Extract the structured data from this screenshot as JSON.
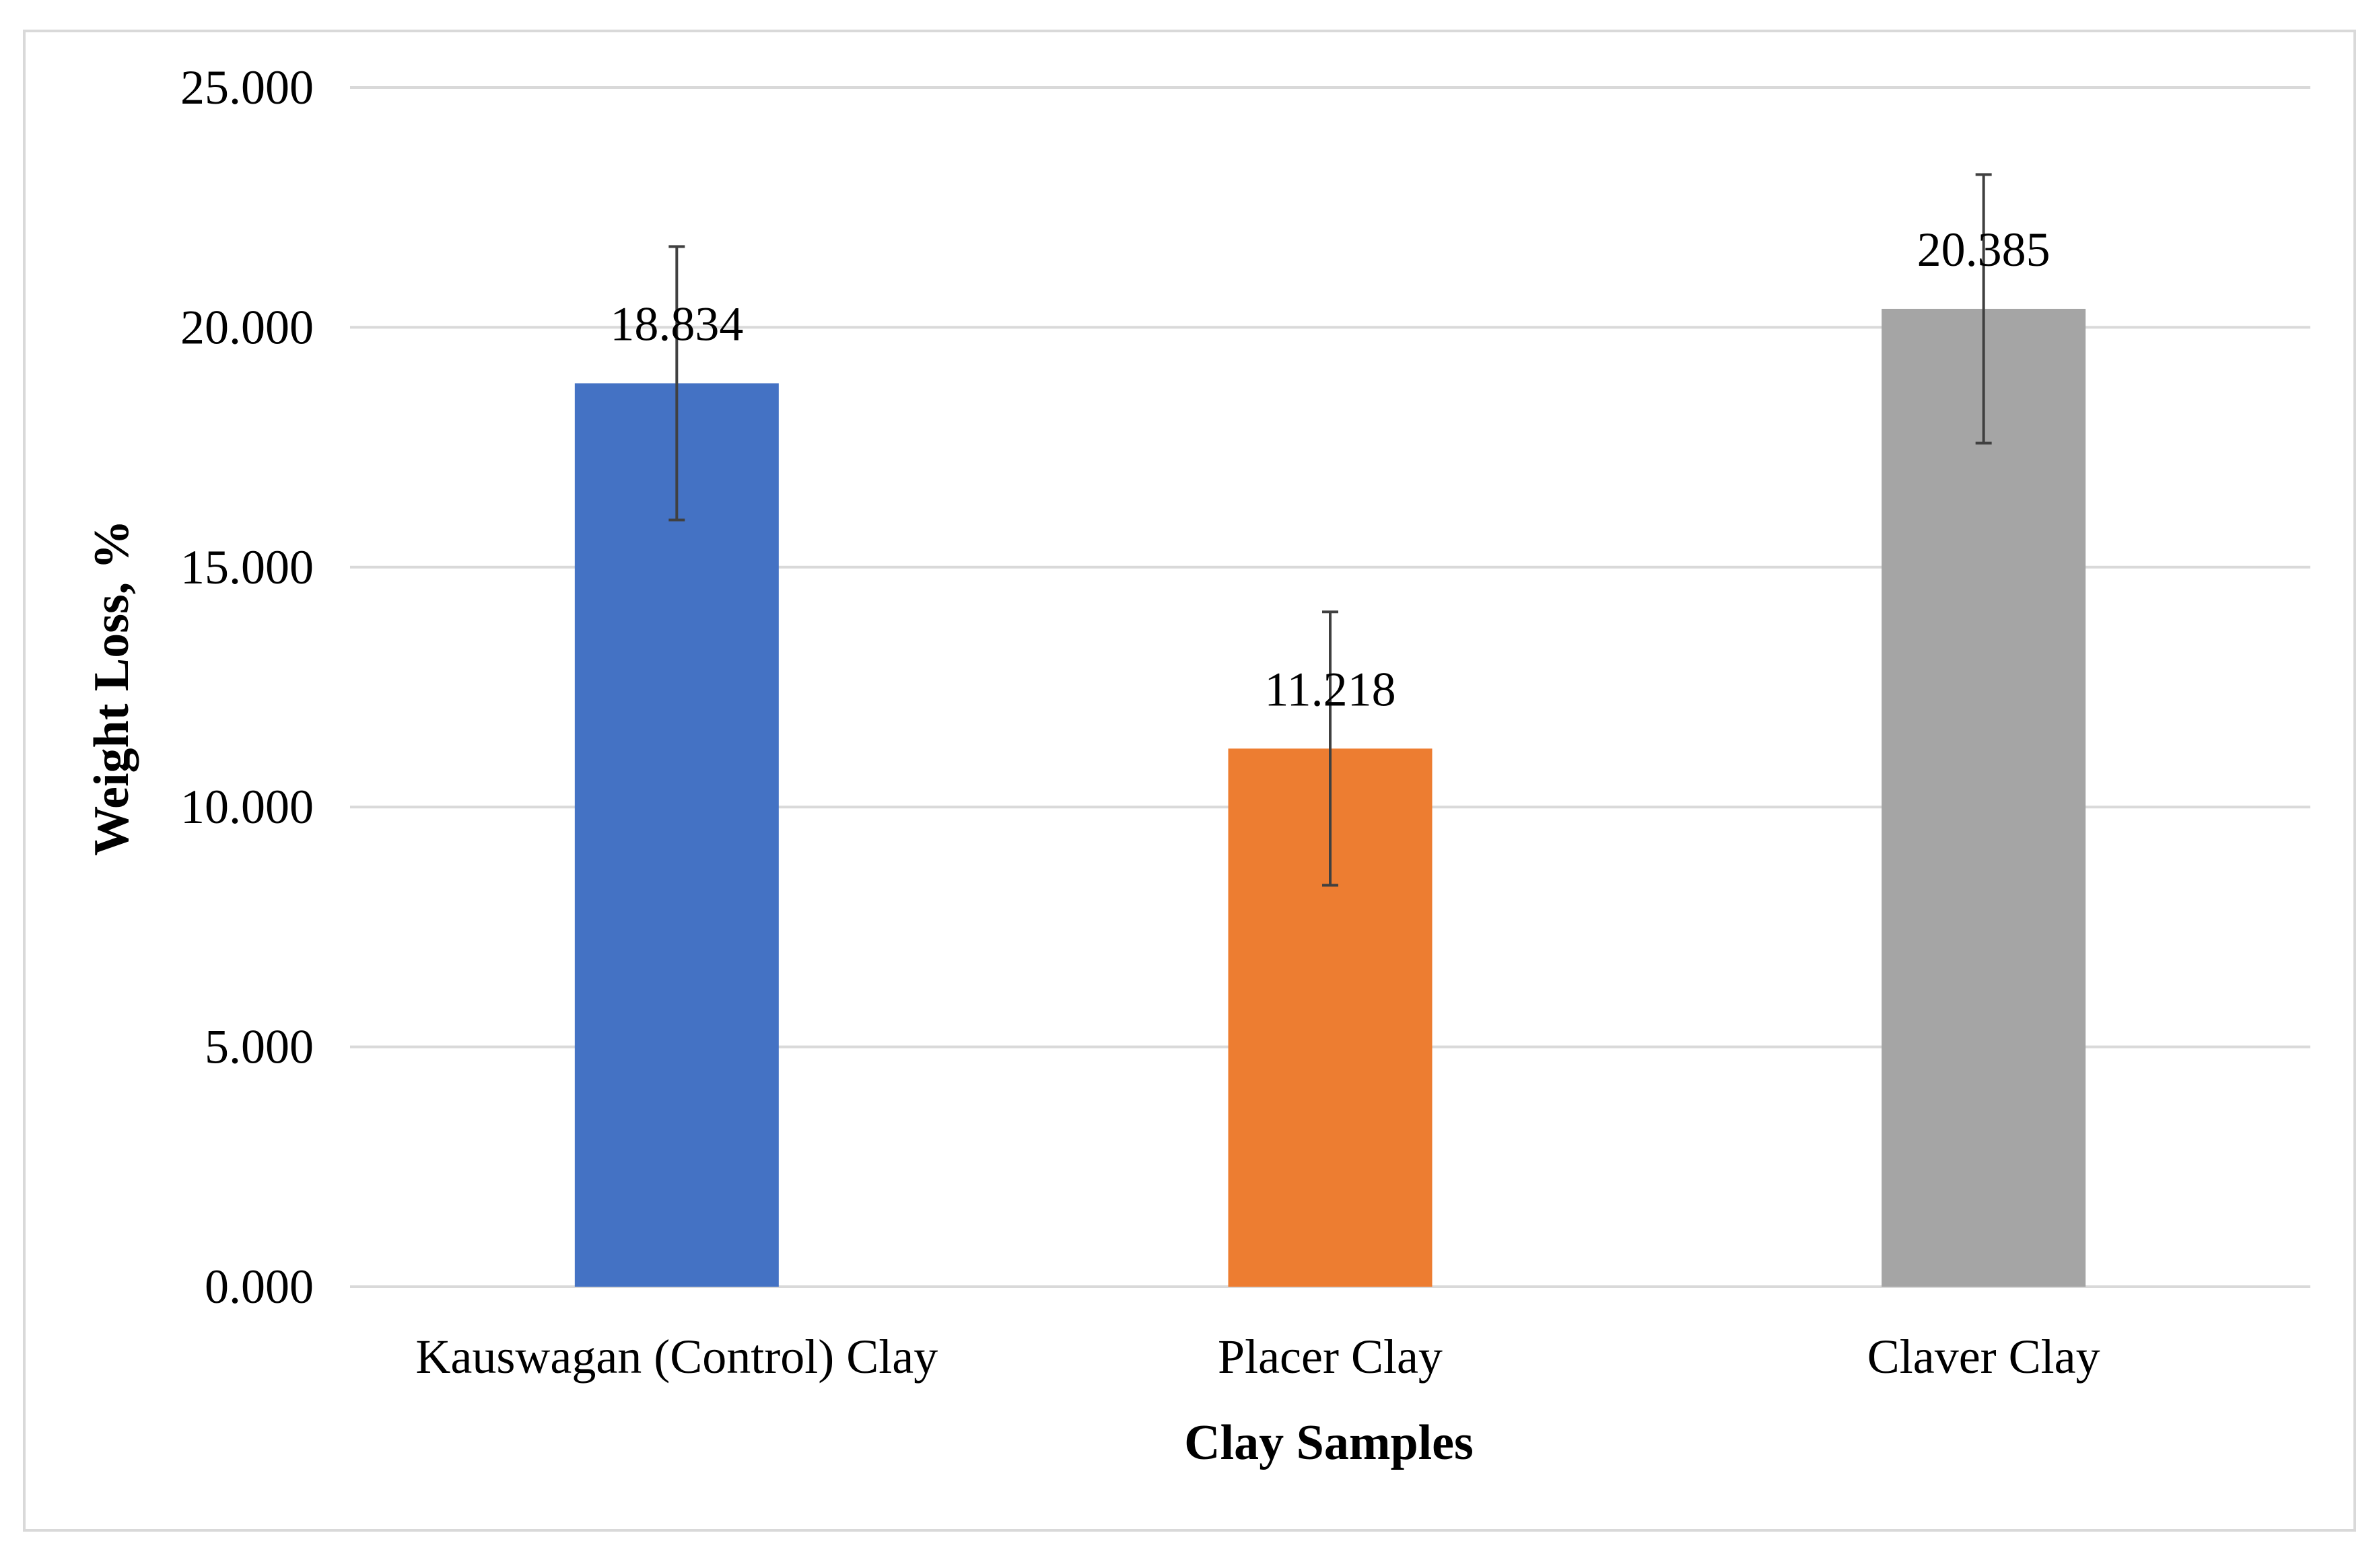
{
  "chart_data": {
    "type": "bar",
    "title": "",
    "xlabel": "Clay Samples",
    "ylabel": "Weight Loss, %",
    "ylim": [
      0,
      25
    ],
    "yticks": [
      0,
      5,
      10,
      15,
      20,
      25
    ],
    "ytick_labels": [
      "0.000",
      "5.000",
      "10.000",
      "15.000",
      "20.000",
      "25.000"
    ],
    "categories": [
      "Kauswagan (Control) Clay",
      "Placer Clay",
      "Claver Clay"
    ],
    "values": [
      18.834,
      11.218,
      20.385
    ],
    "value_labels": [
      "18.834",
      "11.218",
      "20.385"
    ],
    "error": [
      2.85,
      2.85,
      2.8
    ],
    "colors": [
      "#4472c4",
      "#ed7d31",
      "#a5a5a5"
    ],
    "grid": true,
    "legend": "none"
  }
}
